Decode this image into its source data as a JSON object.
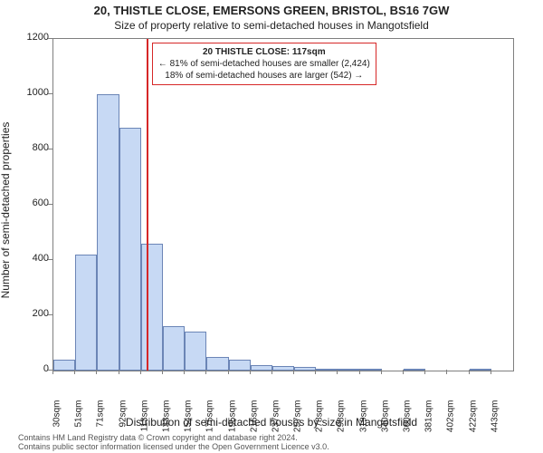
{
  "titles": {
    "line1": "20, THISTLE CLOSE, EMERSONS GREEN, BRISTOL, BS16 7GW",
    "line2": "Size of property relative to semi-detached houses in Mangotsfield"
  },
  "axes": {
    "ylabel": "Number of semi-detached properties",
    "xlabel": "Distribution of semi-detached houses by size in Mangotsfield",
    "ylim": [
      0,
      1200
    ],
    "yticks": [
      0,
      200,
      400,
      600,
      800,
      1000,
      1200
    ],
    "xlim_index": [
      0,
      21
    ]
  },
  "histogram": {
    "type": "histogram",
    "bar_fill": "#c7d9f4",
    "bar_border": "#6b85b6",
    "background_color": "#ffffff",
    "axis_color": "#7f7f7f",
    "bins": [
      {
        "label": "30sqm",
        "value": 38
      },
      {
        "label": "51sqm",
        "value": 420
      },
      {
        "label": "71sqm",
        "value": 1000
      },
      {
        "label": "92sqm",
        "value": 880
      },
      {
        "label": "113sqm",
        "value": 460
      },
      {
        "label": "133sqm",
        "value": 160
      },
      {
        "label": "154sqm",
        "value": 140
      },
      {
        "label": "175sqm",
        "value": 50
      },
      {
        "label": "195sqm",
        "value": 40
      },
      {
        "label": "216sqm",
        "value": 20
      },
      {
        "label": "237sqm",
        "value": 15
      },
      {
        "label": "257sqm",
        "value": 12
      },
      {
        "label": "278sqm",
        "value": 4
      },
      {
        "label": "298sqm",
        "value": 2
      },
      {
        "label": "319sqm",
        "value": 2
      },
      {
        "label": "340sqm",
        "value": 0
      },
      {
        "label": "360sqm",
        "value": 2
      },
      {
        "label": "381sqm",
        "value": 0
      },
      {
        "label": "402sqm",
        "value": 0
      },
      {
        "label": "422sqm",
        "value": 2
      },
      {
        "label": "443sqm",
        "value": 0
      }
    ]
  },
  "marker": {
    "sqm": 117,
    "color": "#d62728",
    "position_index": 4.25
  },
  "callout": {
    "title": "20 THISTLE CLOSE: 117sqm",
    "line1": "← 81% of semi-detached houses are smaller (2,424)",
    "line2": "18% of semi-detached houses are larger (542) →",
    "border_color": "#d62728",
    "background": "#ffffff",
    "fontsize": 10
  },
  "footer": {
    "line1": "Contains HM Land Registry data © Crown copyright and database right 2024.",
    "line2": "Contains public sector information licensed under the Open Government Licence v3.0."
  },
  "style": {
    "title_fontsize": 13,
    "subtitle_fontsize": 12,
    "axis_label_fontsize": 12,
    "tick_fontsize": 11,
    "footer_fontsize": 9,
    "font_family": "Arial"
  }
}
